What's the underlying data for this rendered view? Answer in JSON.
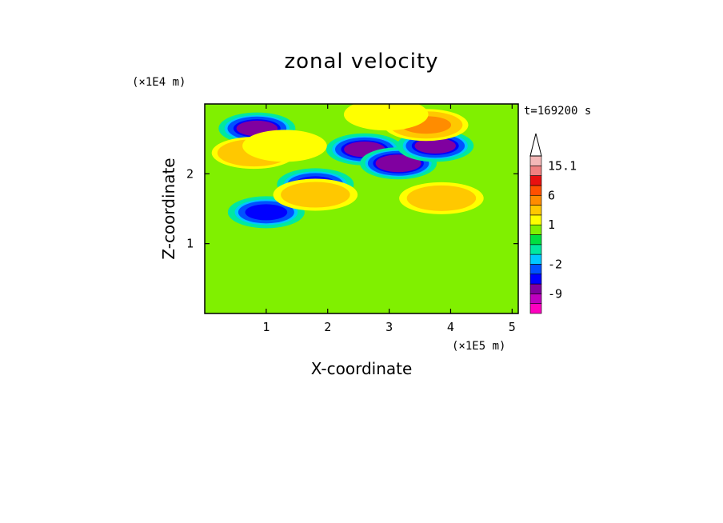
{
  "chart_data": {
    "type": "heatmap",
    "title": "zonal velocity",
    "xlabel": "X-coordinate",
    "ylabel": "Z-coordinate",
    "x_unit": "(×1E5 m)",
    "y_unit": "(×1E4 m)",
    "time_label": "t=169200 s",
    "xlim": [
      0,
      5.1
    ],
    "ylim": [
      0,
      3.0
    ],
    "x_ticks": [
      1,
      2,
      3,
      4,
      5
    ],
    "y_ticks": [
      1,
      2
    ],
    "colorbar": {
      "levels": [
        -12,
        -9,
        -6,
        -4,
        -2,
        -1,
        0,
        0.5,
        1,
        2,
        4,
        6,
        9,
        12,
        15.1
      ],
      "labeled_ticks": [
        {
          "label": "15.1",
          "value": 15.1
        },
        {
          "label": "6",
          "value": 6
        },
        {
          "label": "1",
          "value": 1
        },
        {
          "label": "-2",
          "value": -2
        },
        {
          "label": "-9",
          "value": -9
        }
      ],
      "colors": [
        "#ff00c0",
        "#c000c0",
        "#8000a0",
        "#0000ff",
        "#0050ff",
        "#00c8ff",
        "#00e8a0",
        "#00e040",
        "#80f000",
        "#ffff00",
        "#ffc800",
        "#ff8c00",
        "#ff5000",
        "#e81010",
        "#f08080",
        "#f4b8b8"
      ],
      "extend_max": true
    },
    "features": [
      {
        "kind": "negative-core",
        "x": 0.85,
        "z": 2.65,
        "value": -7
      },
      {
        "kind": "negative-core",
        "x": 2.6,
        "z": 2.35,
        "value": -7
      },
      {
        "kind": "negative-core",
        "x": 3.15,
        "z": 2.15,
        "value": -8
      },
      {
        "kind": "negative-core",
        "x": 3.75,
        "z": 2.4,
        "value": -6
      },
      {
        "kind": "negative-core",
        "x": 1.0,
        "z": 1.45,
        "value": -5
      },
      {
        "kind": "negative-core",
        "x": 1.8,
        "z": 1.85,
        "value": -4
      },
      {
        "kind": "positive-core",
        "x": 0.8,
        "z": 2.3,
        "value": 4
      },
      {
        "kind": "positive-core",
        "x": 3.6,
        "z": 2.7,
        "value": 5
      },
      {
        "kind": "positive-core",
        "x": 1.8,
        "z": 1.7,
        "value": 3
      },
      {
        "kind": "positive-core",
        "x": 3.85,
        "z": 1.65,
        "value": 3
      },
      {
        "kind": "positive-core",
        "x": 2.95,
        "z": 2.85,
        "value": 2
      },
      {
        "kind": "positive-core",
        "x": 1.3,
        "z": 2.4,
        "value": 2
      }
    ]
  }
}
